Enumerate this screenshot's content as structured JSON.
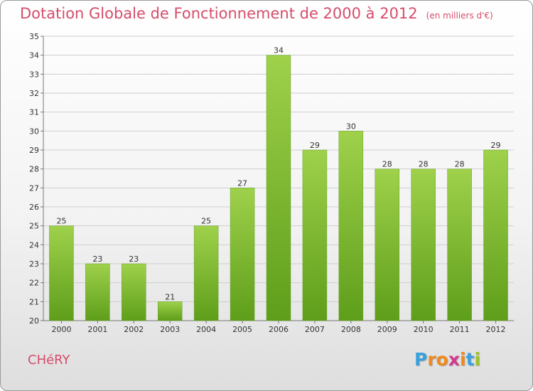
{
  "header": {
    "title": "Dotation Globale de Fonctionnement de 2000 à 2012",
    "unit": "(en milliers d'€)"
  },
  "footer": {
    "commune": "CHéRY",
    "logo_letters": [
      "P",
      "r",
      "o",
      "x",
      "i",
      "t",
      "i"
    ],
    "logo_colors": [
      "#3aa0dc",
      "#f08a1c",
      "#f08a1c",
      "#d23a8c",
      "#f08a1c",
      "#3aa0dc",
      "#9bc42a"
    ]
  },
  "colors": {
    "bar_top": "#9fd14b",
    "bar_bottom": "#5e9e1a",
    "grid": "#cfcfcf",
    "title": "#d64d6a"
  },
  "chart_data": {
    "type": "bar",
    "title": "Dotation Globale de Fonctionnement de 2000 à 2012",
    "subtitle": "(en milliers d'€)",
    "categories": [
      "2000",
      "2001",
      "2002",
      "2003",
      "2004",
      "2005",
      "2006",
      "2007",
      "2008",
      "2009",
      "2010",
      "2011",
      "2012"
    ],
    "values": [
      25,
      23,
      23,
      21,
      25,
      27,
      34,
      29,
      30,
      28,
      28,
      28,
      29
    ],
    "ylim": [
      20,
      35
    ],
    "yticks": [
      "20",
      "21",
      "22",
      "23",
      "24",
      "25",
      "26",
      "27",
      "28",
      "29",
      "30",
      "31",
      "32",
      "33",
      "34",
      "35"
    ],
    "grid": true,
    "data_labels": true
  }
}
